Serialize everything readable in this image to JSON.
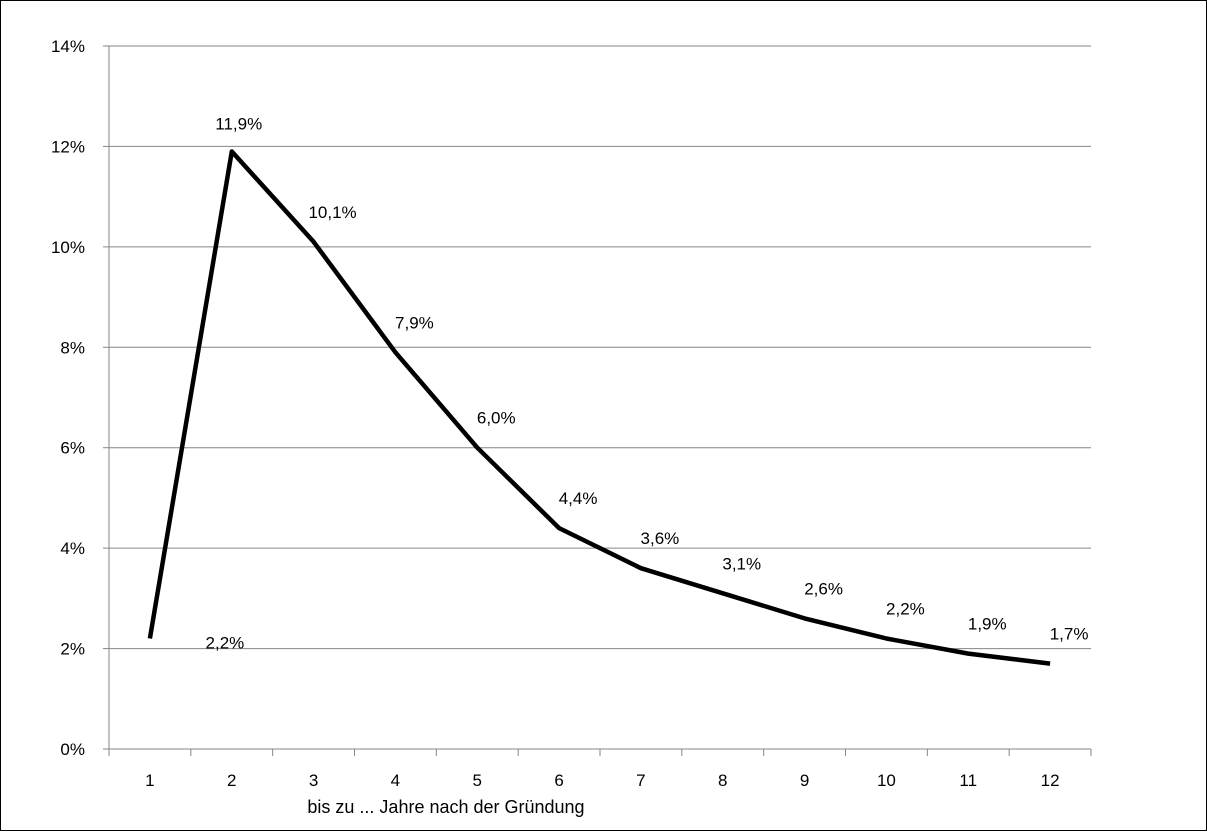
{
  "chart_data": {
    "type": "line",
    "title": "",
    "xlabel": "bis zu ... Jahre nach der Gründung",
    "ylabel": "",
    "categories": [
      "1",
      "2",
      "3",
      "4",
      "5",
      "6",
      "7",
      "8",
      "9",
      "10",
      "11",
      "12"
    ],
    "series": [
      {
        "values": [
          2.2,
          11.9,
          10.1,
          7.9,
          6.0,
          4.4,
          3.6,
          3.1,
          2.6,
          2.2,
          1.9,
          1.7
        ],
        "data_labels": [
          "2,2%",
          "11,9%",
          "10,1%",
          "7,9%",
          "6,0%",
          "4,4%",
          "3,6%",
          "3,1%",
          "2,6%",
          "2,2%",
          "1,9%",
          "1,7%"
        ],
        "color": "#000000"
      }
    ],
    "y_ticks": [
      0,
      2,
      4,
      6,
      8,
      10,
      12,
      14
    ],
    "y_tick_labels": [
      "0%",
      "2%",
      "4%",
      "6%",
      "8%",
      "10%",
      "12%",
      "14%"
    ],
    "ylim": [
      0,
      14
    ],
    "grid": true,
    "gridline_color": "#868686",
    "legend": "none"
  }
}
